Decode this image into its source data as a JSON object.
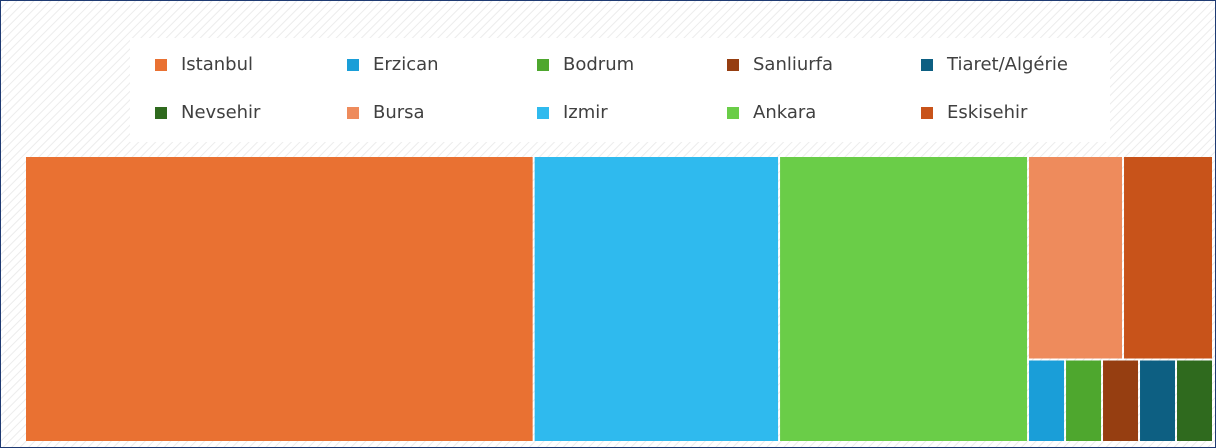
{
  "chart_data": {
    "type": "treemap",
    "categories": [
      "Istanbul",
      "Erzican",
      "Bodrum",
      "Sanliurfa",
      "Tiaret/Algérie",
      "Nevsehir",
      "Bursa",
      "Izmir",
      "Ankara",
      "Eskisehir"
    ],
    "values": [
      143,
      3,
      3,
      3,
      3,
      3,
      19,
      69,
      70,
      18
    ],
    "colors": [
      "#e97132",
      "#1a9ed8",
      "#4ea72e",
      "#963e11",
      "#0d5f82",
      "#2f6a1e",
      "#ee8b5c",
      "#2fbaee",
      "#6acd48",
      "#c8531a"
    ],
    "legend": "top"
  }
}
